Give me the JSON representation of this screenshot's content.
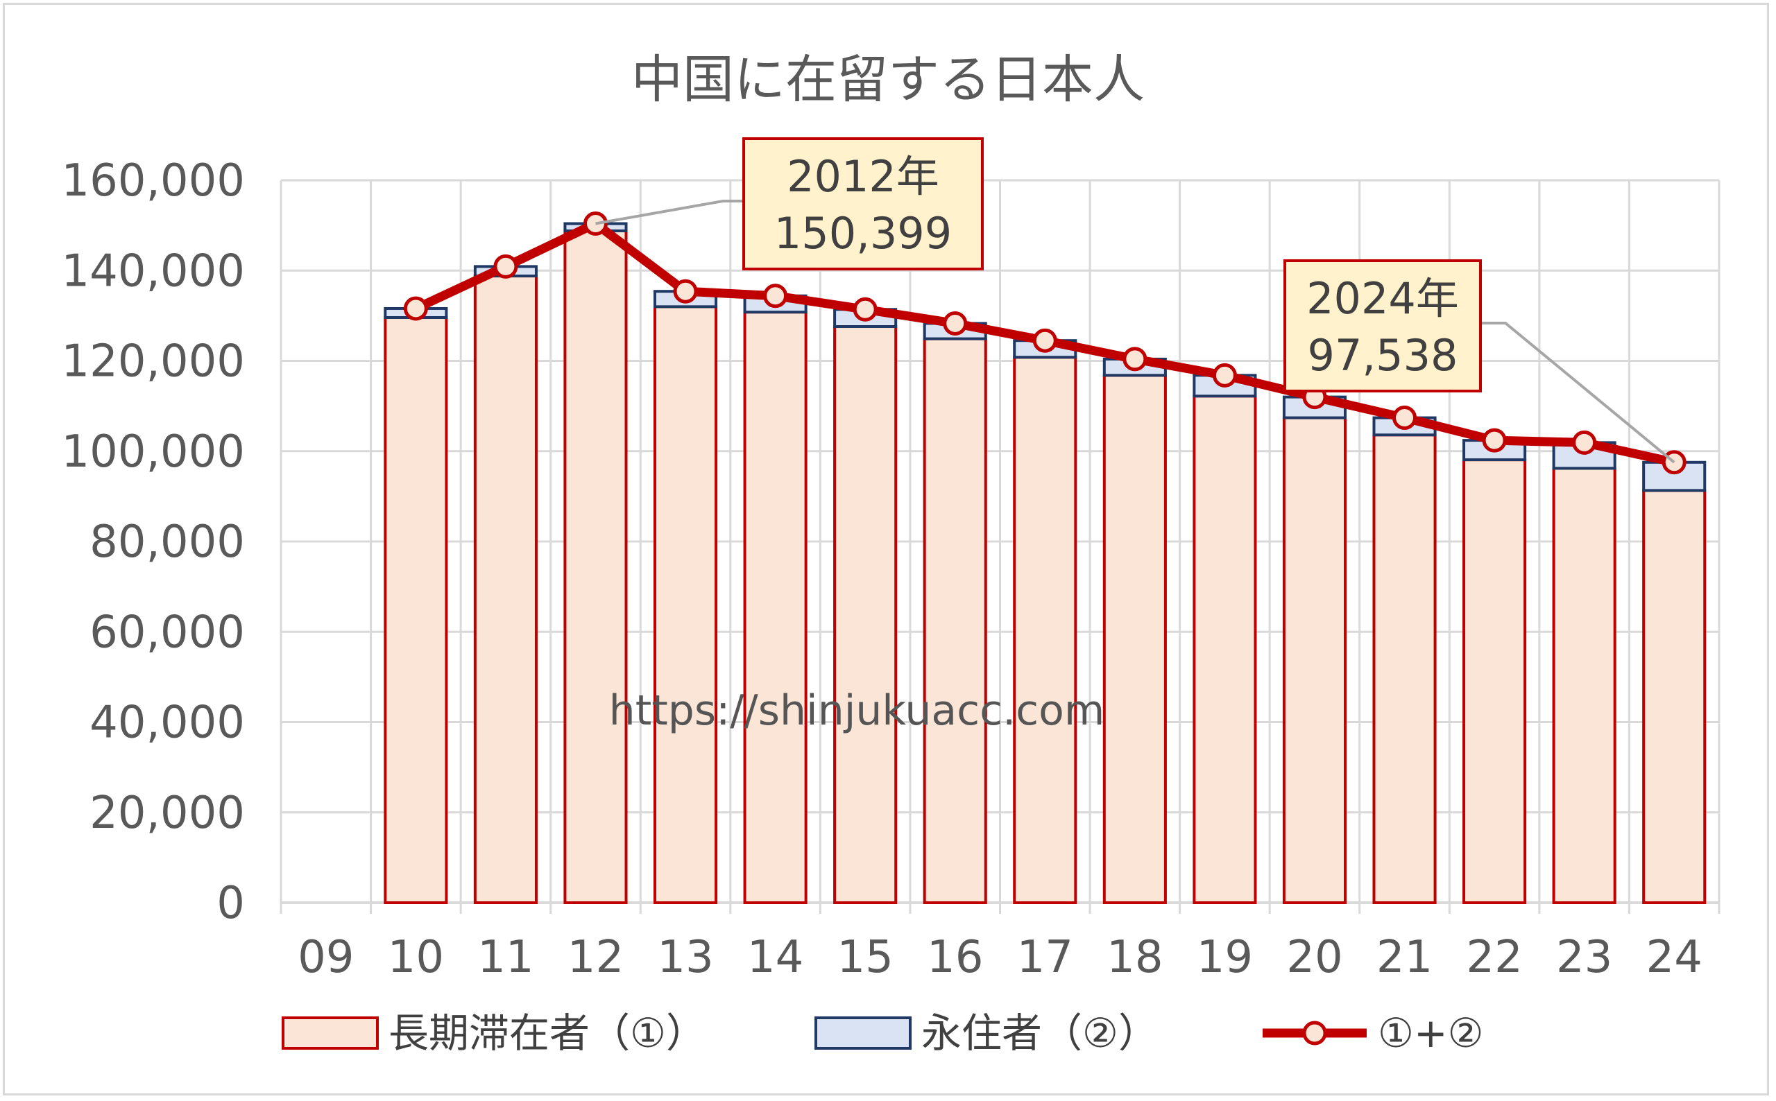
{
  "chart_data": {
    "type": "bar",
    "title": "中国に在留する日本人",
    "categories": [
      "09",
      "10",
      "11",
      "12",
      "13",
      "14",
      "15",
      "16",
      "17",
      "18",
      "19",
      "20",
      "21",
      "22",
      "23",
      "24"
    ],
    "series": [
      {
        "name": "長期滞在者（①）",
        "kind": "stacked-bar",
        "values": [
          null,
          129600,
          138800,
          148800,
          132000,
          130800,
          127600,
          124900,
          120800,
          116800,
          112200,
          107400,
          103600,
          98100,
          96200,
          91300
        ],
        "color": "#fbe5d6",
        "stroke": "#c00000"
      },
      {
        "name": "永住者（②）",
        "kind": "stacked-bar",
        "values": [
          null,
          2000,
          2100,
          1599,
          3400,
          3600,
          3800,
          3400,
          3700,
          3600,
          4600,
          4600,
          3800,
          4300,
          5700,
          6238
        ],
        "color": "#dae3f3",
        "stroke": "#1f3864"
      },
      {
        "name": "①+②",
        "kind": "line-with-markers",
        "values": [
          null,
          131600,
          140900,
          150399,
          135400,
          134400,
          131400,
          128300,
          124500,
          120400,
          116800,
          112000,
          107400,
          102400,
          101900,
          97538
        ],
        "color": "#c00000",
        "marker_fill": "#fbe5d6"
      }
    ],
    "ylim": [
      0,
      160000
    ],
    "yticks": [
      "0",
      "20,000",
      "40,000",
      "60,000",
      "80,000",
      "100,000",
      "120,000",
      "140,000",
      "160,000"
    ],
    "grid": true,
    "legend_position": "bottom",
    "annotations": [
      {
        "category": "12",
        "line1": "2012年",
        "line2": "150,399"
      },
      {
        "category": "24",
        "line1": "2024年",
        "line2": "97,538"
      }
    ],
    "watermark": "https://shinjukuacc.com"
  },
  "colors": {
    "axis": "#d9d9d9",
    "grid": "#d9d9d9",
    "line": "#c00000",
    "callout_fill": "#fff2cc",
    "callout_border": "#c00000",
    "leader": "#a6a6a6"
  }
}
